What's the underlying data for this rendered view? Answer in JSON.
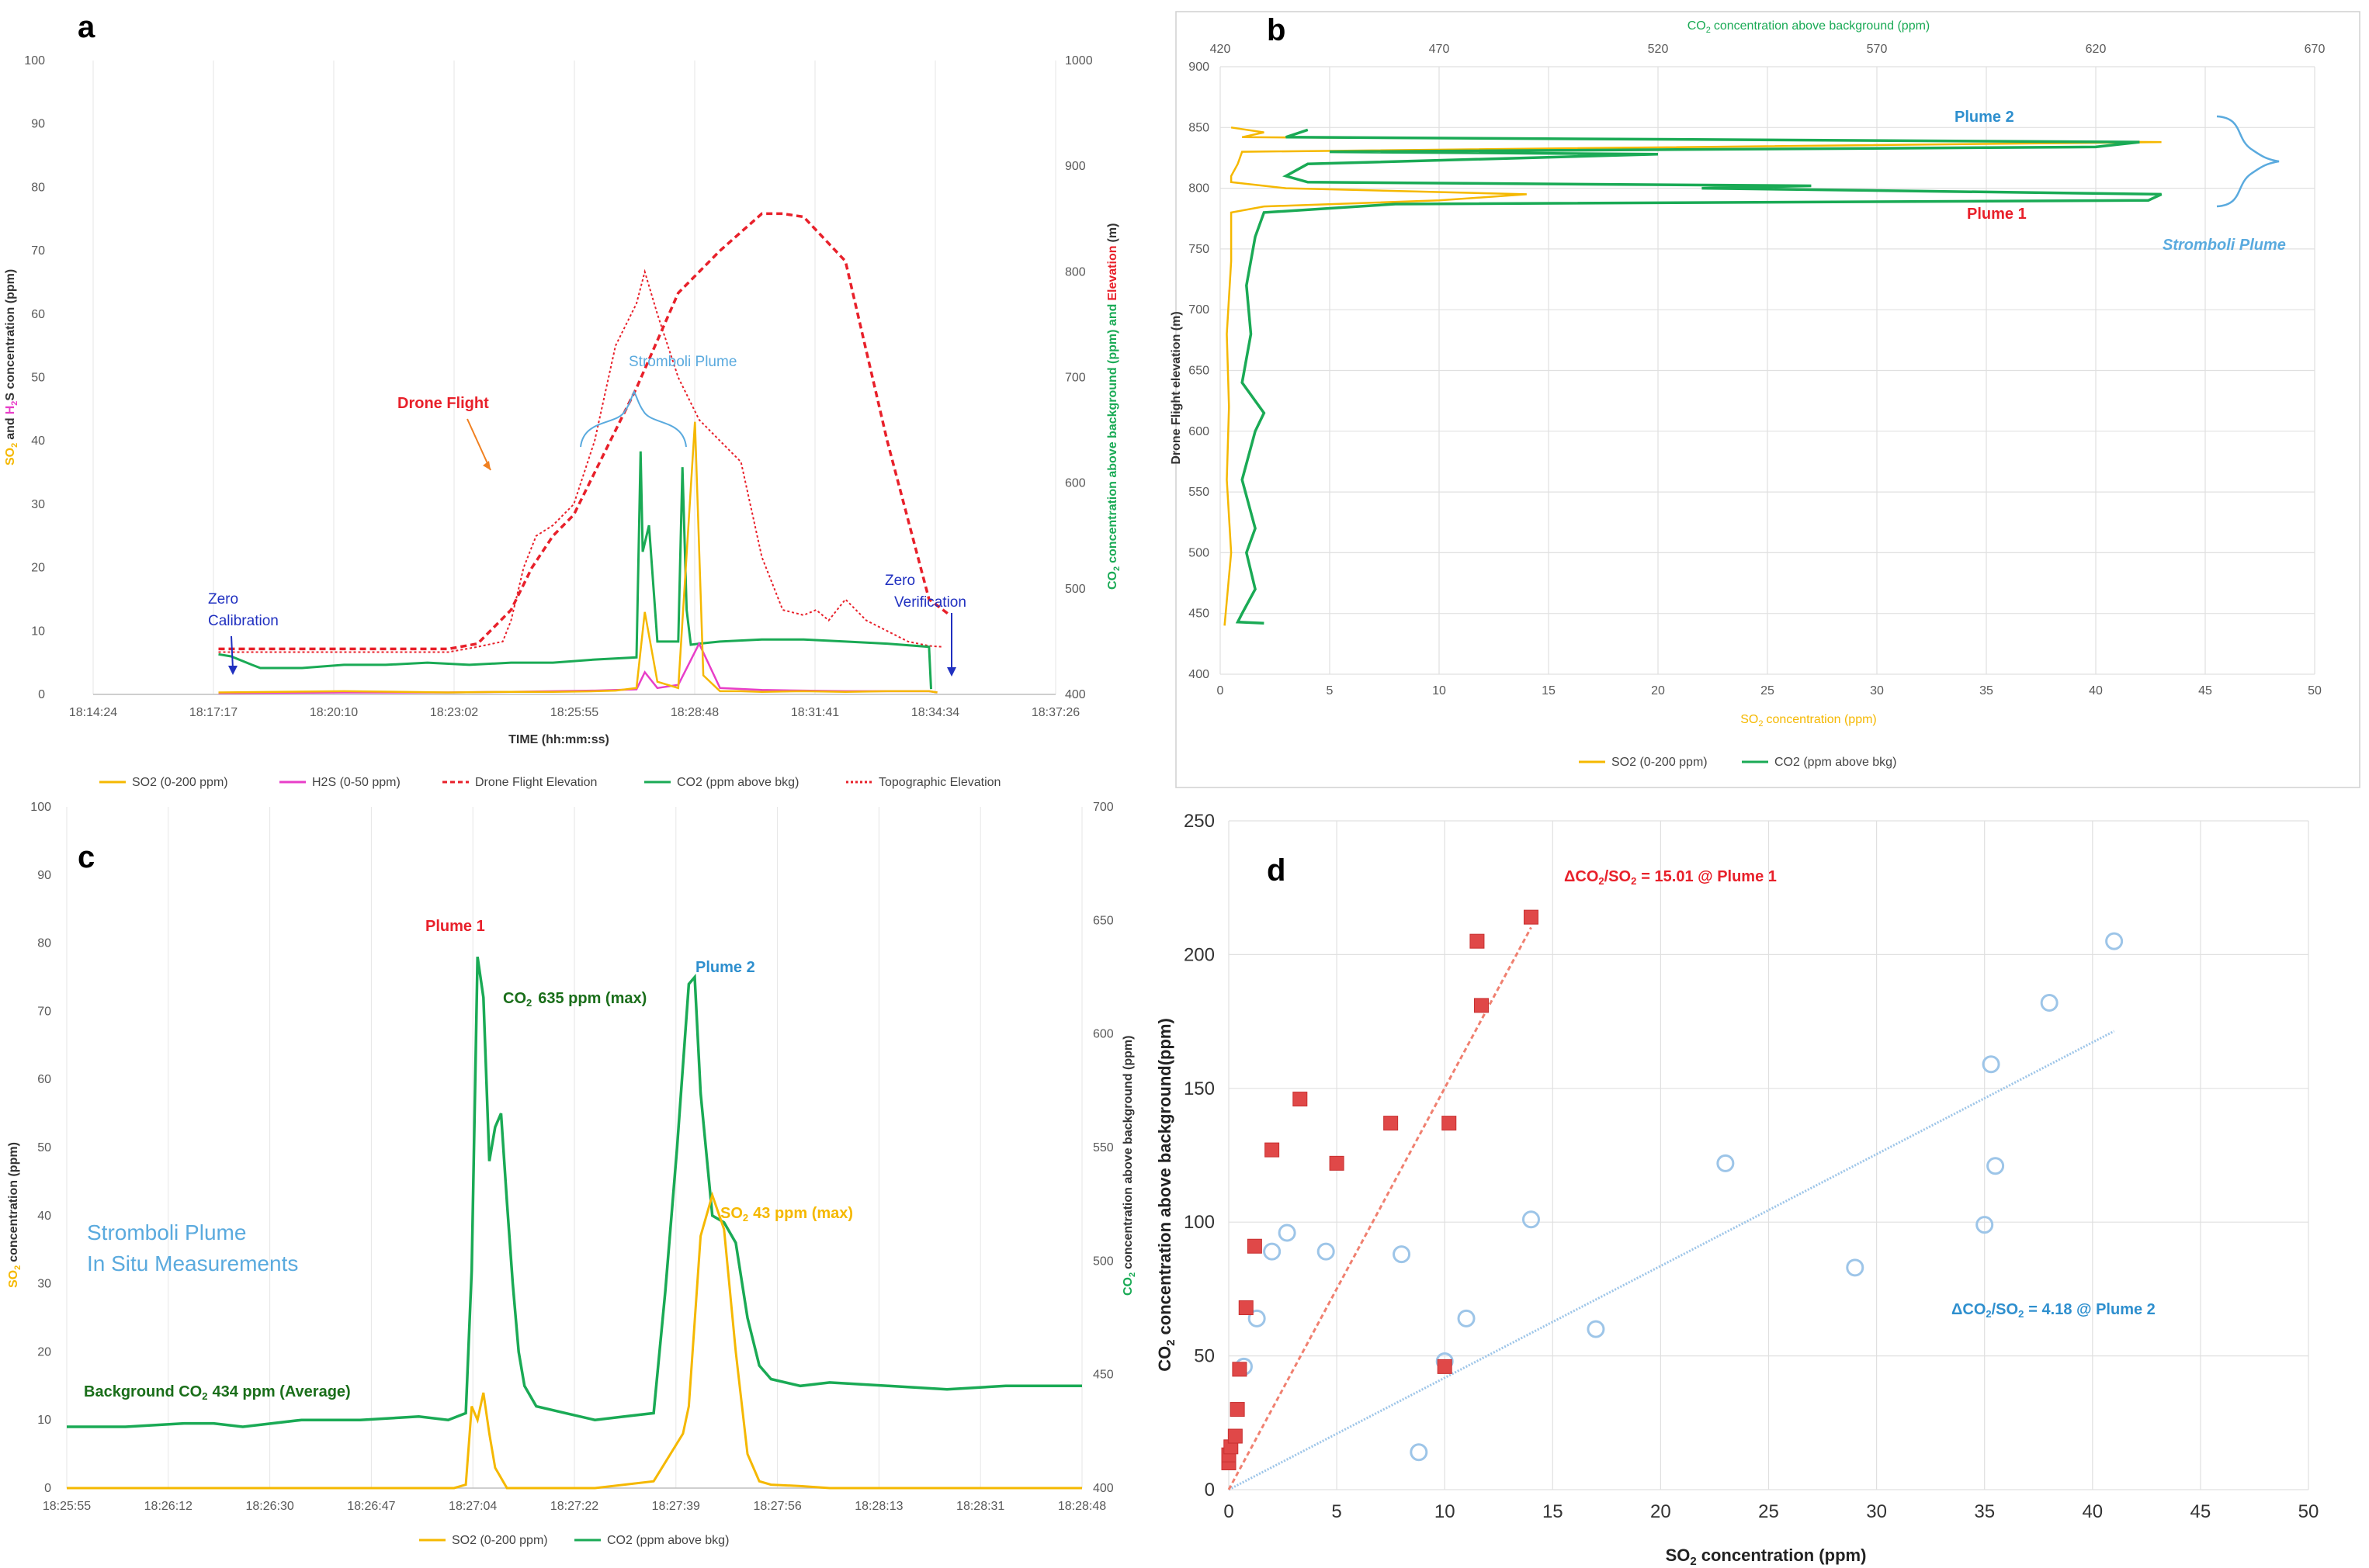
{
  "colors": {
    "so2": "#f5b800",
    "h2s": "#e83ec8",
    "co2": "#1aaa55",
    "drone": "#e8202a",
    "topo": "#e8202a",
    "plume2": "#2e8fce",
    "plume1": "#e8202a",
    "stromboli": "#5aaade",
    "fitblue": "#9dc5e8",
    "fitred": "#f08070",
    "darkgreen": "#1a6e1a",
    "navy": "#2030c0"
  },
  "chart_data": [
    {
      "panel": "a",
      "type": "line",
      "title": "",
      "xlabel": "TIME (hh:mm:ss)",
      "ylabel_left": "SO₂ and H₂S concentration (ppm)",
      "ylabel_right": "CO₂ concentration above background (ppm) and Elevation (m)",
      "x_ticks": [
        "18:14:24",
        "18:17:17",
        "18:20:10",
        "18:23:02",
        "18:25:55",
        "18:28:48",
        "18:31:41",
        "18:34:34",
        "18:37:26"
      ],
      "y_left_ticks": [
        0,
        10,
        20,
        30,
        40,
        50,
        60,
        70,
        80,
        90,
        100
      ],
      "y_right_ticks": [
        400,
        500,
        600,
        700,
        800,
        900,
        1000
      ],
      "ylim_left": [
        0,
        100
      ],
      "ylim_right": [
        400,
        1000
      ],
      "x_range": [
        "18:14:24",
        "18:37:26"
      ],
      "series": [
        {
          "name": "SO2 (0-200 ppm)",
          "axis": "left",
          "x_min": [
            3,
            6,
            8.5,
            10,
            11,
            12,
            12.5,
            13,
            13.2,
            13.5,
            14,
            14.4,
            14.6,
            15,
            15.5,
            16,
            17,
            18,
            19,
            20,
            20.2
          ],
          "values": [
            0.3,
            0.5,
            0.3,
            0.4,
            0.4,
            0.5,
            0.6,
            1,
            13,
            2,
            1,
            43,
            3,
            0.5,
            0.5,
            0.4,
            0.5,
            0.4,
            0.5,
            0.5,
            0.3
          ]
        },
        {
          "name": "H2S (0-50 ppm)",
          "axis": "left",
          "x_min": [
            3,
            6,
            8.5,
            10,
            12,
            13,
            13.2,
            13.5,
            14,
            14.5,
            15,
            16,
            17,
            18,
            19,
            20,
            20.2
          ],
          "values": [
            0.2,
            0.3,
            0.3,
            0.4,
            0.6,
            0.8,
            3.5,
            1,
            1.5,
            8,
            1,
            0.7,
            0.6,
            0.5,
            0.5,
            0.5,
            0.3
          ]
        },
        {
          "name": "Drone Flight Elevation",
          "axis": "right",
          "x_min": [
            3,
            5,
            7,
            8.5,
            9.2,
            10,
            10.5,
            11,
            11.5,
            12,
            13,
            14,
            15,
            16,
            16.5,
            17,
            18,
            19,
            20,
            20.5
          ],
          "values": [
            443,
            443,
            443,
            443,
            448,
            480,
            520,
            550,
            570,
            610,
            690,
            780,
            820,
            855,
            855,
            852,
            810,
            640,
            490,
            475
          ]
        },
        {
          "name": "CO2 (ppm above bkg)",
          "axis": "right",
          "x_min": [
            3,
            3.3,
            3.8,
            4,
            5,
            6,
            7,
            8,
            9,
            10,
            11,
            12,
            13,
            13.1,
            13.15,
            13.3,
            13.5,
            14,
            14.1,
            14.2,
            14.3,
            14.5,
            15,
            16,
            17,
            18,
            19,
            20,
            20.05
          ],
          "values": [
            438,
            436,
            428,
            425,
            425,
            428,
            428,
            430,
            428,
            430,
            430,
            433,
            435,
            630,
            535,
            560,
            450,
            450,
            615,
            480,
            447,
            448,
            450,
            452,
            452,
            450,
            448,
            445,
            405
          ]
        },
        {
          "name": "Topographic Elevation",
          "axis": "right",
          "x_min": [
            3,
            7,
            8.5,
            9.2,
            9.8,
            10,
            10.3,
            10.6,
            11,
            11.5,
            12,
            12.5,
            13,
            13.2,
            13.5,
            14,
            14.5,
            15,
            15.5,
            16,
            16.5,
            17,
            17.3,
            17.6,
            18,
            18.5,
            19,
            19.5,
            20,
            20.3
          ],
          "values": [
            440,
            440,
            440,
            445,
            450,
            470,
            520,
            550,
            560,
            580,
            640,
            730,
            770,
            800,
            760,
            700,
            660,
            640,
            620,
            530,
            480,
            475,
            480,
            470,
            490,
            470,
            460,
            450,
            446,
            445
          ]
        }
      ],
      "annotations": [
        "Drone Flight",
        "Stromboli Plume",
        "Zero Calibration",
        "Zero Verification"
      ]
    },
    {
      "panel": "b",
      "type": "line",
      "xlabel_bottom": "SO₂ concentration (ppm)",
      "xlabel_top": "CO₂ concentration above background (ppm)",
      "ylabel": "Drone Flight elevation (m)",
      "x_bottom_ticks": [
        0,
        5,
        10,
        15,
        20,
        25,
        30,
        35,
        40,
        45,
        50
      ],
      "x_top_ticks": [
        420,
        470,
        520,
        570,
        620,
        670
      ],
      "y_ticks": [
        400,
        450,
        500,
        550,
        600,
        650,
        700,
        750,
        800,
        850,
        900
      ],
      "ylim": [
        400,
        900
      ],
      "xlim_bottom": [
        0,
        50
      ],
      "xlim_top": [
        420,
        670
      ],
      "series": [
        {
          "name": "SO2 (0-200 ppm)",
          "elevation": [
            440,
            500,
            560,
            620,
            680,
            740,
            780,
            785,
            790,
            795,
            800,
            805,
            810,
            820,
            830,
            838,
            842,
            846,
            850
          ],
          "values": [
            0.2,
            0.5,
            0.3,
            0.4,
            0.3,
            0.5,
            0.5,
            2,
            10,
            14,
            3,
            0.5,
            0.5,
            0.8,
            1,
            43,
            1,
            2,
            0.5
          ]
        },
        {
          "name": "CO2 (ppm above bkg)",
          "elevation": [
            442,
            443,
            450,
            470,
            500,
            520,
            560,
            600,
            615,
            640,
            680,
            720,
            760,
            780,
            787,
            790,
            795,
            800,
            802,
            805,
            810,
            820,
            828,
            830,
            834,
            838,
            842,
            848
          ],
          "values": [
            430,
            424,
            425,
            428,
            426,
            428,
            425,
            428,
            430,
            425,
            427,
            426,
            428,
            430,
            460,
            632,
            635,
            530,
            555,
            440,
            435,
            440,
            520,
            445,
            620,
            630,
            435,
            440
          ]
        }
      ],
      "annotations": [
        "Plume 2",
        "Plume 1",
        "Stromboli Plume"
      ]
    },
    {
      "panel": "c",
      "type": "line",
      "ylabel_left": "SO₂ concentration (ppm)",
      "ylabel_right": "CO₂ concentration above background (ppm)",
      "x_ticks": [
        "18:25:55",
        "18:26:12",
        "18:26:30",
        "18:26:47",
        "18:27:04",
        "18:27:22",
        "18:27:39",
        "18:27:56",
        "18:28:13",
        "18:28:31",
        "18:28:48"
      ],
      "y_left_ticks": [
        0,
        10,
        20,
        30,
        40,
        50,
        60,
        70,
        80,
        90,
        100
      ],
      "y_right_ticks": [
        400,
        450,
        500,
        550,
        600,
        650,
        700
      ],
      "ylim_left": [
        0,
        100
      ],
      "ylim_right": [
        400,
        700
      ],
      "x_range_s": [
        0,
        173
      ],
      "series": [
        {
          "name": "SO2 (0-200 ppm)",
          "axis": "left",
          "t_s": [
            0,
            30,
            60,
            66,
            68,
            69,
            70,
            71,
            72,
            73,
            75,
            77,
            80,
            90,
            100,
            105,
            106,
            108,
            110,
            112,
            114,
            116,
            118,
            120,
            125,
            130,
            173
          ],
          "values": [
            0,
            0,
            0,
            0,
            0.5,
            12,
            10,
            14,
            8,
            3,
            0,
            0,
            0,
            0,
            1,
            8,
            12,
            37,
            43,
            38,
            20,
            5,
            1,
            0.5,
            0.3,
            0,
            0
          ]
        },
        {
          "name": "CO2 (ppm above bkg)",
          "axis": "left",
          "t_s": [
            0,
            10,
            20,
            25,
            30,
            40,
            50,
            60,
            65,
            68,
            69,
            70,
            71,
            72,
            73,
            74,
            75,
            76,
            77,
            78,
            80,
            85,
            90,
            95,
            100,
            102,
            104,
            106,
            107,
            108,
            110,
            112,
            114,
            116,
            118,
            120,
            125,
            130,
            140,
            150,
            160,
            173
          ],
          "values": [
            9,
            9,
            9.5,
            9.5,
            9,
            10,
            10,
            10.5,
            10,
            11,
            32,
            78,
            72,
            48,
            53,
            55,
            42,
            30,
            20,
            15,
            12,
            11,
            10,
            10.5,
            11,
            29,
            50,
            74,
            75,
            58,
            40,
            39,
            36,
            25,
            18,
            16,
            15,
            15.5,
            15,
            14.5,
            15,
            15
          ]
        }
      ],
      "annotations": [
        "Plume 1",
        "Plume 2",
        "CO₂ 635 ppm (max)",
        "SO₂ 43 ppm (max)",
        "Background CO₂ 434 ppm (Average)",
        "Stromboli Plume",
        "In Situ Measurements"
      ]
    },
    {
      "panel": "d",
      "type": "scatter",
      "xlabel": "SO₂ concentration (ppm)",
      "ylabel": "CO₂ concentration above background(ppm)",
      "x_ticks": [
        0,
        5,
        10,
        15,
        20,
        25,
        30,
        35,
        40,
        45,
        50
      ],
      "y_ticks": [
        0,
        50,
        100,
        150,
        200,
        250
      ],
      "xlim": [
        0,
        50
      ],
      "ylim": [
        0,
        250
      ],
      "series": [
        {
          "name": "Plume 1",
          "marker": "square",
          "points": [
            [
              0,
              10
            ],
            [
              0,
              13
            ],
            [
              0.1,
              16
            ],
            [
              0.3,
              20
            ],
            [
              0.4,
              30
            ],
            [
              0.5,
              45
            ],
            [
              0.8,
              68
            ],
            [
              1.2,
              91
            ],
            [
              2,
              127
            ],
            [
              3.3,
              146
            ],
            [
              5,
              122
            ],
            [
              7.5,
              137
            ],
            [
              10.2,
              137
            ],
            [
              10,
              46
            ],
            [
              11.5,
              205
            ],
            [
              11.7,
              181
            ],
            [
              14,
              214
            ]
          ]
        },
        {
          "name": "Plume 2",
          "marker": "circle",
          "points": [
            [
              0.7,
              46
            ],
            [
              1.3,
              64
            ],
            [
              2,
              89
            ],
            [
              2.7,
              96
            ],
            [
              4.5,
              89
            ],
            [
              8,
              88
            ],
            [
              8.8,
              14
            ],
            [
              10,
              48
            ],
            [
              11,
              64
            ],
            [
              14,
              101
            ],
            [
              17,
              60
            ],
            [
              23,
              122
            ],
            [
              29,
              83
            ],
            [
              35,
              99
            ],
            [
              35.3,
              159
            ],
            [
              35.5,
              121
            ],
            [
              38,
              182
            ],
            [
              41,
              205
            ]
          ]
        }
      ],
      "fits": [
        {
          "name": "Plume 1",
          "slope": 15.01,
          "x_range": [
            0,
            14
          ]
        },
        {
          "name": "Plume 2",
          "slope": 4.18,
          "x_range": [
            0,
            41
          ]
        }
      ],
      "annotations": [
        "ΔCO₂/SO₂ = 15.01 @ Plume 1",
        "ΔCO₂/SO₂ = 4.18 @ Plume 2"
      ]
    }
  ],
  "panels": {
    "a": {
      "label": "a",
      "xlabel": "TIME (hh:mm:ss)",
      "ylabel_left_a": "SO",
      "ylabel_left_b": "and",
      "ylabel_left_c": "H",
      "ylabel_left_d": "S concentration (ppm)",
      "ylabel_right_a": "CO",
      "ylabel_right_b": "concentration above background (ppm) and",
      "ylabel_right_c": "Elevation",
      "ylabel_right_d": "(m)",
      "legend": [
        "SO2 (0-200 ppm)",
        "H2S (0-50 ppm)",
        "Drone Flight Elevation",
        "CO2 (ppm above bkg)",
        "Topographic Elevation"
      ],
      "ann_drone": "Drone Flight",
      "ann_plume": "Stromboli Plume",
      "ann_zero_cal_1": "Zero",
      "ann_zero_cal_2": "Calibration",
      "ann_zero_ver_1": "Zero",
      "ann_zero_ver_2": "Verification"
    },
    "b": {
      "label": "b",
      "xlabel_bottom_a": "SO",
      "xlabel_bottom_b": "concentration (ppm)",
      "xlabel_top_a": "CO",
      "xlabel_top_b": "concentration above background (ppm)",
      "ylabel": "Drone Flight elevation (m)",
      "legend": [
        "SO2 (0-200 ppm)",
        "CO2 (ppm above bkg)"
      ],
      "ann_plume2": "Plume 2",
      "ann_plume1": "Plume 1",
      "ann_stromboli": "Stromboli Plume"
    },
    "c": {
      "label": "c",
      "ylabel_left_a": "SO",
      "ylabel_left_b": "concentration (ppm)",
      "ylabel_right_a": "CO",
      "ylabel_right_b": "concentration above background (ppm)",
      "legend": [
        "SO2 (0-200 ppm)",
        "CO2 (ppm above bkg)"
      ],
      "ann_plume1": "Plume 1",
      "ann_plume2": "Plume 2",
      "ann_co2max_a": "CO",
      "ann_co2max_b": "635 ppm (max)",
      "ann_so2max_a": "SO",
      "ann_so2max_b": "43 ppm (max)",
      "ann_bg_a": "Background CO",
      "ann_bg_b": "434 ppm (Average)",
      "ann_title1": "Stromboli Plume",
      "ann_title2": "In Situ Measurements"
    },
    "d": {
      "label": "d",
      "xlabel_a": "SO",
      "xlabel_b": "concentration (ppm)",
      "ylabel_a": "CO",
      "ylabel_b": "concentration above background(ppm)",
      "ann_red_a": "ΔCO",
      "ann_red_b": "/SO",
      "ann_red_c": "= 15.01 @ Plume 1",
      "ann_blue_a": "ΔCO",
      "ann_blue_b": "/SO",
      "ann_blue_c": "= 4.18 @ Plume 2"
    }
  },
  "subscript2": "2"
}
